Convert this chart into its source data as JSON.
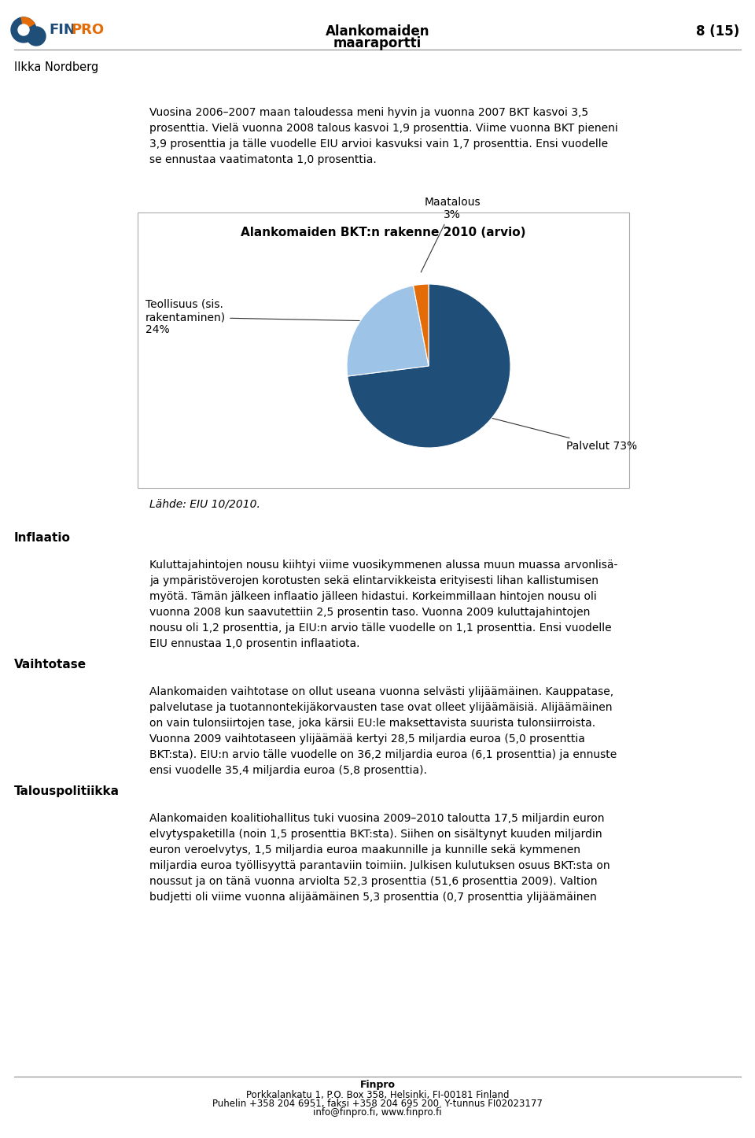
{
  "page_title_center": "Alankomaiden\nmaaraportti",
  "page_number": "8 (15)",
  "author": "Ilkka Nordberg",
  "body_text_1": "Vuosina 2006–2007 maan taloudessa meni hyvin ja vuonna 2007 BKT kasvoi 3,5\nprosenttia. Vielä vuonna 2008 talous kasvoi 1,9 prosenttia. Viime vuonna BKT pieneni\n3,9 prosenttia ja tälle vuodelle EIU arvioi kasvuksi vain 1,7 prosenttia. Ensi vuodelle\nse ennustaa vaatimatonta 1,0 prosenttia.",
  "chart_title": "Alankomaiden BKT:n rakenne 2010 (arvio)",
  "pie_values": [
    73,
    24,
    3
  ],
  "pie_colors": [
    "#1F4E79",
    "#9DC3E6",
    "#E36C09"
  ],
  "source_text": "Lähde: EIU 10/2010.",
  "section_inflaatio": "Inflaatio",
  "section_vaihtotase": "Vaihtotase",
  "section_talouspolitiikka": "Talouspolitiikka",
  "body_text_inflaatio": "Kuluttajahintojen nousu kiihtyi viime vuosikymmenen alussa muun muassa arvonlisä-\nja ympäristöverojen korotusten sekä elintarvikkeista erityisesti lihan kallistumisen\nmyötä. Tämän jälkeen inflaatio jälleen hidastui. Korkeimmillaan hintojen nousu oli\nvuonna 2008 kun saavutettiin 2,5 prosentin taso. Vuonna 2009 kuluttajahintojen\nnousu oli 1,2 prosenttia, ja EIU:n arvio tälle vuodelle on 1,1 prosenttia. Ensi vuodelle\nEIU ennustaa 1,0 prosentin inflaatiota.",
  "body_text_vaihtotase": "Alankomaiden vaihtotase on ollut useana vuonna selvästi ylijäämäinen. Kauppatase,\npalvelutase ja tuotannontekijäkorvausten tase ovat olleet ylijäämäisiä. Alijäämäinen\non vain tulonsiirtojen tase, joka kärsii EU:le maksettavista suurista tulonsiirroista.\nVuonna 2009 vaihtotaseen ylijäämää kertyi 28,5 miljardia euroa (5,0 prosenttia\nBKT:sta). EIU:n arvio tälle vuodelle on 36,2 miljardia euroa (6,1 prosenttia) ja ennuste\nensi vuodelle 35,4 miljardia euroa (5,8 prosenttia).",
  "body_text_talouspolitiikka": "Alankomaiden koalitiohallitus tuki vuosina 2009–2010 taloutta 17,5 miljardin euron\nelvytyspaketilla (noin 1,5 prosenttia BKT:sta). Siihen on sisältynyt kuuden miljardin\neuron veroelvytys, 1,5 miljardia euroa maakunnille ja kunnille sekä kymmenen\nmiljardia euroa työllisyyttä parantaviin toimiin. Julkisen kulutuksen osuus BKT:sta on\nnoussut ja on tänä vuonna arviolta 52,3 prosenttia (51,6 prosenttia 2009). Valtion\nbudjetti oli viime vuonna alijäämäinen 5,3 prosenttia (0,7 prosenttia ylijäämäinen",
  "footer_line1": "Finpro",
  "footer_line2": "Porkkalankatu 1, P.O. Box 358, Helsinki, FI-00181 Finland",
  "footer_line3": "Puhelin +358 204 6951, faksi +358 204 695 200. Y-tunnus FI02023177",
  "footer_line4": "info@finpro.fi, www.finpro.fi",
  "bg_color": "#ffffff",
  "header_line_color": "#888888",
  "chart_border_color": "#aaaaaa",
  "logo_blue": "#1F4E79",
  "logo_orange": "#E36C09",
  "finpro_blue": "#003366",
  "finpro_orange": "#E36C09",
  "label_palvelut": "Palvelut 73%",
  "label_teollisuus": "Teollisuus (sis.\nrakentaminen)\n24%",
  "label_maatalous": "Maatalous\n3%"
}
